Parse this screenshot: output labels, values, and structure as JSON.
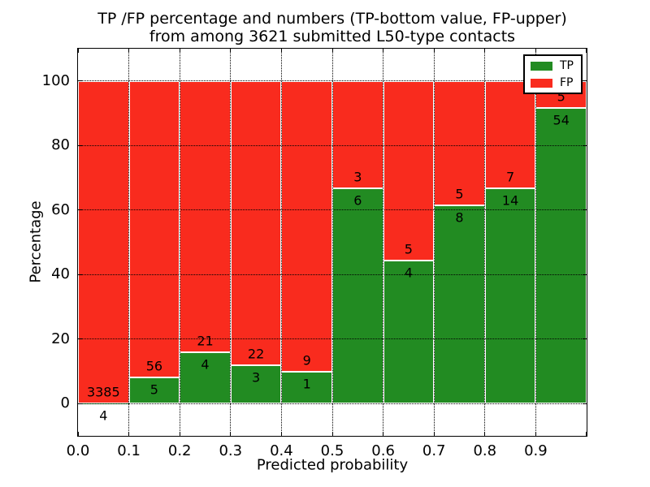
{
  "chart_data": {
    "type": "bar",
    "stacked": true,
    "percent_normalized": true,
    "title_line1": "TP /FP percentage and numbers (TP-bottom value, FP-upper)",
    "title_line2": "from among 3621 submitted L50-type contacts",
    "total_contacts": 3621,
    "xlabel": "Predicted probability",
    "ylabel": "Percentage",
    "xlim": [
      0.0,
      1.0
    ],
    "ylim": [
      -10,
      110
    ],
    "grid": "dotted black, on top of bars",
    "legend_position": "upper right",
    "background_color": "#ffffff",
    "bar_edge_color": "#ffffff",
    "categories": [
      "0.0-0.1",
      "0.1-0.2",
      "0.2-0.3",
      "0.3-0.4",
      "0.4-0.5",
      "0.5-0.6",
      "0.6-0.7",
      "0.7-0.8",
      "0.8-0.9",
      "0.9-1.0"
    ],
    "xtick_labels": [
      "0.0",
      "0.1",
      "0.2",
      "0.3",
      "0.4",
      "0.5",
      "0.6",
      "0.7",
      "0.8",
      "0.9"
    ],
    "yticks": [
      0,
      20,
      40,
      60,
      80,
      100
    ],
    "series": [
      {
        "name": "TP",
        "color": "#228b22",
        "position": "bottom",
        "values": [
          4,
          5,
          4,
          3,
          1,
          6,
          4,
          8,
          14,
          54
        ]
      },
      {
        "name": "FP",
        "color": "#f92b1e",
        "position": "top",
        "values": [
          3385,
          56,
          21,
          22,
          9,
          3,
          5,
          5,
          7,
          5
        ]
      }
    ]
  }
}
